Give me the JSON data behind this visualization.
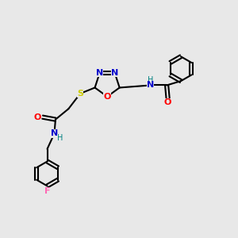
{
  "background_color": "#e8e8e8",
  "atom_colors": {
    "C": "#000000",
    "N": "#0000cc",
    "O": "#ff0000",
    "S": "#cccc00",
    "F": "#ff69b4",
    "H": "#008080"
  },
  "bond_color": "#000000",
  "figsize": [
    3.0,
    3.0
  ],
  "dpi": 100
}
